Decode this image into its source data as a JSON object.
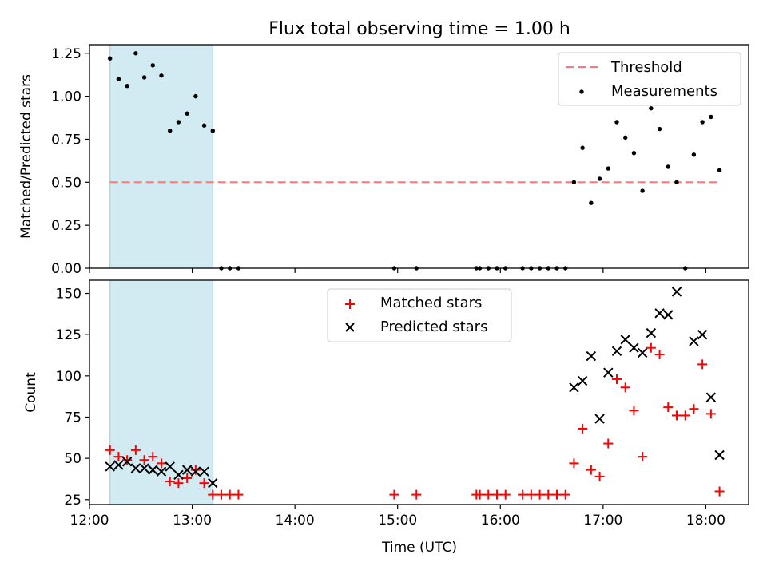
{
  "chart_data": [
    {
      "type": "scatter",
      "title": "Flux total observing time = 1.00 h",
      "xlabel": "",
      "ylabel": "Matched/Predicted stars",
      "xlim": [
        "12:00",
        "18:25"
      ],
      "ylim": [
        0,
        1.3
      ],
      "yticks": [
        "0.00",
        "0.25",
        "0.50",
        "0.75",
        "1.00",
        "1.25"
      ],
      "shaded_span": [
        "12:12",
        "13:12"
      ],
      "legend_position": "upper right",
      "grid": false,
      "threshold": {
        "name": "Threshold",
        "value": 0.5,
        "x_range": [
          "12:12",
          "18:08"
        ],
        "color": "#ff7777",
        "style": "dashed"
      },
      "series": [
        {
          "name": "Measurements",
          "color": "#000000",
          "marker": "dot",
          "points": [
            [
              "12:12",
              1.22
            ],
            [
              "12:17",
              1.1
            ],
            [
              "12:22",
              1.06
            ],
            [
              "12:27",
              1.25
            ],
            [
              "12:32",
              1.11
            ],
            [
              "12:37",
              1.18
            ],
            [
              "12:42",
              1.12
            ],
            [
              "12:47",
              0.8
            ],
            [
              "12:52",
              0.85
            ],
            [
              "12:57",
              0.9
            ],
            [
              "13:02",
              1.0
            ],
            [
              "13:07",
              0.83
            ],
            [
              "13:12",
              0.8
            ],
            [
              "13:17",
              0.0
            ],
            [
              "13:22",
              0.0
            ],
            [
              "13:27",
              0.0
            ],
            [
              "14:58",
              0.0
            ],
            [
              "15:11",
              0.0
            ],
            [
              "15:46",
              0.0
            ],
            [
              "15:48",
              0.0
            ],
            [
              "15:53",
              0.0
            ],
            [
              "15:58",
              0.0
            ],
            [
              "16:03",
              0.0
            ],
            [
              "16:13",
              0.0
            ],
            [
              "16:18",
              0.0
            ],
            [
              "16:23",
              0.0
            ],
            [
              "16:28",
              0.0
            ],
            [
              "16:33",
              0.0
            ],
            [
              "16:38",
              0.0
            ],
            [
              "16:43",
              0.5
            ],
            [
              "16:48",
              0.7
            ],
            [
              "16:53",
              0.38
            ],
            [
              "16:58",
              0.52
            ],
            [
              "17:03",
              0.58
            ],
            [
              "17:08",
              0.85
            ],
            [
              "17:13",
              0.76
            ],
            [
              "17:18",
              0.67
            ],
            [
              "17:23",
              0.45
            ],
            [
              "17:28",
              0.93
            ],
            [
              "17:33",
              0.81
            ],
            [
              "17:38",
              0.59
            ],
            [
              "17:43",
              0.5
            ],
            [
              "17:48",
              0.0
            ],
            [
              "17:53",
              0.66
            ],
            [
              "17:58",
              0.85
            ],
            [
              "18:03",
              0.88
            ],
            [
              "18:08",
              0.57
            ]
          ]
        }
      ]
    },
    {
      "type": "scatter",
      "title": "",
      "xlabel": "Time (UTC)",
      "ylabel": "Count",
      "xlim": [
        "12:00",
        "18:25"
      ],
      "ylim": [
        22,
        158
      ],
      "xticks": [
        "12:00",
        "13:00",
        "14:00",
        "15:00",
        "16:00",
        "17:00",
        "18:00"
      ],
      "yticks": [
        "25",
        "50",
        "75",
        "100",
        "125",
        "150"
      ],
      "shaded_span": [
        "12:12",
        "13:12"
      ],
      "legend_position": "upper center",
      "grid": false,
      "series": [
        {
          "name": "Matched stars",
          "color": "#ff0000",
          "marker": "plus",
          "points": [
            [
              "12:12",
              55
            ],
            [
              "12:17",
              51
            ],
            [
              "12:22",
              49
            ],
            [
              "12:27",
              55
            ],
            [
              "12:32",
              49
            ],
            [
              "12:37",
              51
            ],
            [
              "12:42",
              47
            ],
            [
              "12:47",
              36
            ],
            [
              "12:52",
              35
            ],
            [
              "12:57",
              38
            ],
            [
              "13:02",
              43
            ],
            [
              "13:07",
              35
            ],
            [
              "13:12",
              28
            ],
            [
              "13:17",
              28
            ],
            [
              "13:22",
              28
            ],
            [
              "13:27",
              28
            ],
            [
              "14:58",
              28
            ],
            [
              "15:11",
              28
            ],
            [
              "15:46",
              28
            ],
            [
              "15:48",
              28
            ],
            [
              "15:53",
              28
            ],
            [
              "15:58",
              28
            ],
            [
              "16:03",
              28
            ],
            [
              "16:13",
              28
            ],
            [
              "16:18",
              28
            ],
            [
              "16:23",
              28
            ],
            [
              "16:28",
              28
            ],
            [
              "16:33",
              28
            ],
            [
              "16:38",
              28
            ],
            [
              "16:43",
              47
            ],
            [
              "16:48",
              68
            ],
            [
              "16:53",
              43
            ],
            [
              "16:58",
              39
            ],
            [
              "17:03",
              59
            ],
            [
              "17:08",
              98
            ],
            [
              "17:13",
              93
            ],
            [
              "17:18",
              79
            ],
            [
              "17:23",
              51
            ],
            [
              "17:28",
              117
            ],
            [
              "17:33",
              113
            ],
            [
              "17:38",
              81
            ],
            [
              "17:43",
              76
            ],
            [
              "17:48",
              76
            ],
            [
              "17:53",
              80
            ],
            [
              "17:58",
              107
            ],
            [
              "18:03",
              77
            ],
            [
              "18:08",
              30
            ]
          ]
        },
        {
          "name": "Predicted stars",
          "color": "#000000",
          "marker": "x",
          "points": [
            [
              "12:12",
              45
            ],
            [
              "12:17",
              46
            ],
            [
              "12:22",
              48
            ],
            [
              "12:27",
              44
            ],
            [
              "12:32",
              44
            ],
            [
              "12:37",
              43
            ],
            [
              "12:42",
              42
            ],
            [
              "12:47",
              45
            ],
            [
              "12:52",
              40
            ],
            [
              "12:57",
              43
            ],
            [
              "13:02",
              42
            ],
            [
              "13:07",
              42
            ],
            [
              "13:12",
              35
            ],
            [
              "16:43",
              93
            ],
            [
              "16:48",
              97
            ],
            [
              "16:53",
              112
            ],
            [
              "16:58",
              74
            ],
            [
              "17:03",
              102
            ],
            [
              "17:08",
              115
            ],
            [
              "17:13",
              122
            ],
            [
              "17:18",
              117
            ],
            [
              "17:23",
              114
            ],
            [
              "17:28",
              126
            ],
            [
              "17:33",
              138
            ],
            [
              "17:38",
              137
            ],
            [
              "17:43",
              151
            ],
            [
              "17:53",
              121
            ],
            [
              "17:58",
              125
            ],
            [
              "18:03",
              87
            ],
            [
              "18:08",
              52
            ]
          ]
        }
      ]
    }
  ]
}
